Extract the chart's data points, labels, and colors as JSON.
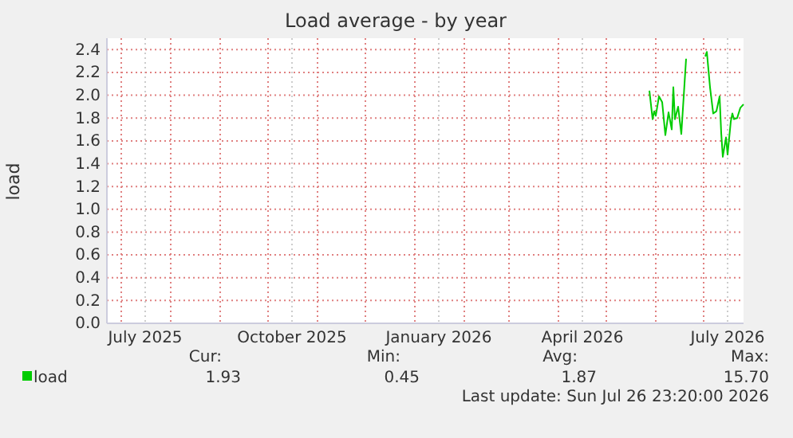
{
  "chart_data": {
    "type": "line",
    "title": "Load average - by year",
    "ylabel": "load",
    "x": [
      "2026-05-28",
      "2026-05-30",
      "2026-05-31",
      "2026-06-01",
      "2026-06-03",
      "2026-06-05",
      "2026-06-07",
      "2026-06-09",
      "2026-06-11",
      "2026-06-12",
      "2026-06-13",
      "2026-06-15",
      "2026-06-17",
      "2026-06-20",
      "2026-06-25",
      "2026-07-02",
      "2026-07-03",
      "2026-07-05",
      "2026-07-07",
      "2026-07-09",
      "2026-07-11",
      "2026-07-12",
      "2026-07-13",
      "2026-07-15",
      "2026-07-16",
      "2026-07-18",
      "2026-07-19",
      "2026-07-20",
      "2026-07-22",
      "2026-07-24",
      "2026-07-26"
    ],
    "series": [
      {
        "name": "load",
        "color": "#00cc00",
        "values": [
          2.04,
          1.79,
          1.86,
          1.82,
          1.99,
          1.94,
          1.65,
          1.85,
          1.7,
          2.07,
          1.79,
          1.9,
          1.66,
          2.32,
          null,
          2.34,
          2.38,
          2.07,
          1.84,
          1.86,
          1.99,
          1.67,
          1.46,
          1.63,
          1.48,
          1.77,
          1.84,
          1.79,
          1.8,
          1.89,
          1.92
        ]
      }
    ],
    "xlim": [
      "2025-06-22",
      "2026-07-26"
    ],
    "xticks": [
      {
        "value": "2025-07-01",
        "label": null
      },
      {
        "value": "2025-07-16",
        "label": "July 2025"
      },
      {
        "value": "2025-08-01",
        "label": null
      },
      {
        "value": "2025-09-01",
        "label": null
      },
      {
        "value": "2025-10-01",
        "label": null
      },
      {
        "value": "2025-10-16",
        "label": "October 2025"
      },
      {
        "value": "2025-11-01",
        "label": null
      },
      {
        "value": "2025-12-01",
        "label": null
      },
      {
        "value": "2026-01-01",
        "label": null
      },
      {
        "value": "2026-01-16",
        "label": "January 2026"
      },
      {
        "value": "2026-02-01",
        "label": null
      },
      {
        "value": "2026-03-01",
        "label": null
      },
      {
        "value": "2026-04-01",
        "label": null
      },
      {
        "value": "2026-04-16",
        "label": "April 2026"
      },
      {
        "value": "2026-05-01",
        "label": null
      },
      {
        "value": "2026-06-01",
        "label": null
      },
      {
        "value": "2026-07-01",
        "label": null
      },
      {
        "value": "2026-07-16",
        "label": "July 2026"
      }
    ],
    "ylim": [
      0,
      2.5
    ],
    "yticks": [
      {
        "value": 0,
        "label": "0.0"
      },
      {
        "value": 0.2,
        "label": "0.2"
      },
      0.4,
      0.6,
      0.8,
      {
        "value": 1,
        "label": "1.0"
      },
      1.2,
      1.4,
      1.6,
      1.8,
      {
        "value": 2,
        "label": "2.0"
      },
      2.2,
      2.4
    ],
    "grid": true,
    "legend": "bottom",
    "annotations": [
      "Cur:",
      "Min:",
      "Avg:",
      "Max:",
      "1.93",
      "0.45",
      "1.87",
      "15.70",
      "Last update: Sun Jul 26 23:20:00 2026"
    ]
  }
}
